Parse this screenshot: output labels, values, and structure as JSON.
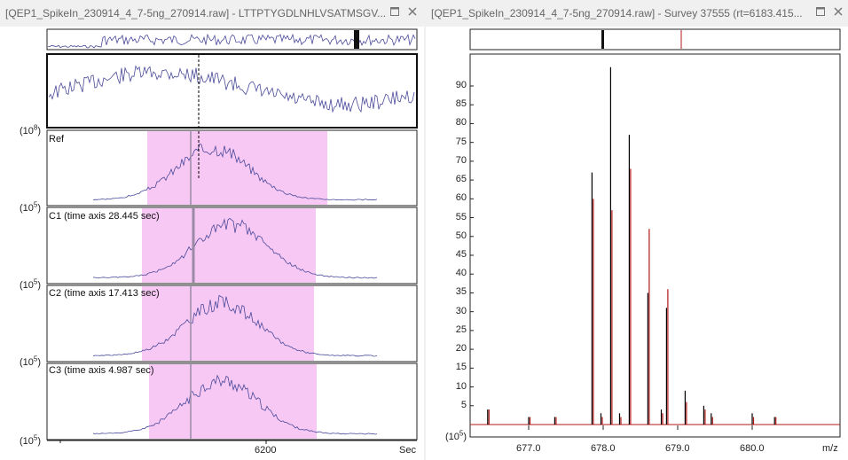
{
  "left_window": {
    "title": "[QEP1_SpikeIn_230914_4_7-5ng_270914.raw] - LTTPTYGDLNHLVSATMSGV...",
    "panels": [
      {
        "label": "Ref",
        "ylabel": "(10^8)"
      },
      {
        "label": "C1 (time axis 28.445 sec)",
        "ylabel": "(10^5)"
      },
      {
        "label": "C2 (time axis 17.413 sec)",
        "ylabel": "(10^5)"
      },
      {
        "label": "C3 (time axis 4.987 sec)",
        "ylabel": "(10^5)"
      }
    ],
    "ylabel_bottom": "(10^5)",
    "x_tick": "6200",
    "x_unit": "Sec"
  },
  "right_window": {
    "title": "[QEP1_SpikeIn_230914_4_7-5ng_270914.raw] - Survey 37555 (rt=6183.415...",
    "ylabel": "(10^5)",
    "x_ticks": [
      "677.0",
      "678.0",
      "679.0",
      "680.0"
    ],
    "x_unit": "m/z",
    "y_ticks": [
      "5",
      "10",
      "15",
      "20",
      "25",
      "30",
      "35",
      "40",
      "45",
      "50",
      "55",
      "60",
      "65",
      "70",
      "75",
      "80",
      "85",
      "90"
    ]
  },
  "colors": {
    "trace": "#4a4a9a",
    "highlight": "#f8c8f4",
    "spectrum_black": "#000000",
    "spectrum_red": "#b01818"
  },
  "icons": [
    "close-icon",
    "maximize-icon"
  ]
}
